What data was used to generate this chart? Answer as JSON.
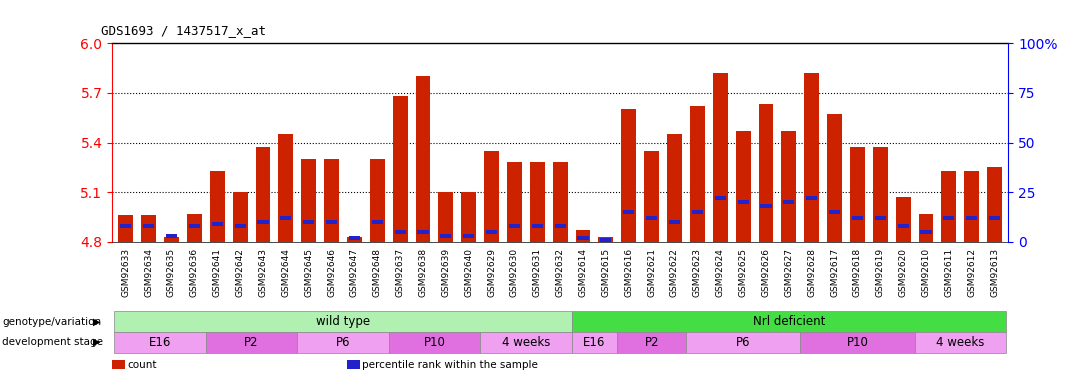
{
  "title": "GDS1693 / 1437517_x_at",
  "samples": [
    "GSM92633",
    "GSM92634",
    "GSM92635",
    "GSM92636",
    "GSM92641",
    "GSM92642",
    "GSM92643",
    "GSM92644",
    "GSM92645",
    "GSM92646",
    "GSM92647",
    "GSM92648",
    "GSM92637",
    "GSM92638",
    "GSM92639",
    "GSM92640",
    "GSM92629",
    "GSM92630",
    "GSM92631",
    "GSM92632",
    "GSM92614",
    "GSM92615",
    "GSM92616",
    "GSM92621",
    "GSM92622",
    "GSM92623",
    "GSM92624",
    "GSM92625",
    "GSM92626",
    "GSM92627",
    "GSM92628",
    "GSM92617",
    "GSM92618",
    "GSM92619",
    "GSM92620",
    "GSM92610",
    "GSM92611",
    "GSM92612",
    "GSM92613"
  ],
  "red_values": [
    4.96,
    4.96,
    4.83,
    4.97,
    5.23,
    5.1,
    5.37,
    5.45,
    5.3,
    5.3,
    4.83,
    5.3,
    5.68,
    5.8,
    5.1,
    5.1,
    5.35,
    5.28,
    5.28,
    5.28,
    4.87,
    4.83,
    5.6,
    5.35,
    5.45,
    5.62,
    5.82,
    5.47,
    5.63,
    5.47,
    5.82,
    5.57,
    5.37,
    5.37,
    5.07,
    4.97,
    5.23,
    5.23,
    5.25
  ],
  "blue_values": [
    8,
    8,
    3,
    8,
    9,
    8,
    10,
    12,
    10,
    10,
    2,
    10,
    5,
    5,
    3,
    3,
    5,
    8,
    8,
    8,
    2,
    1,
    15,
    12,
    10,
    15,
    22,
    20,
    18,
    20,
    22,
    15,
    12,
    12,
    8,
    5,
    12,
    12,
    12
  ],
  "ymin": 4.8,
  "ymax": 6.0,
  "y2min": 0,
  "y2max": 100,
  "yticks_left": [
    4.8,
    5.1,
    5.4,
    5.7,
    6.0
  ],
  "yticks_right": [
    0,
    25,
    50,
    75,
    100
  ],
  "dotted_lines": [
    5.1,
    5.4,
    5.7
  ],
  "genotype_groups": [
    {
      "label": "wild type",
      "start": 0,
      "end": 20,
      "color": "#b0f0b0"
    },
    {
      "label": "Nrl deficient",
      "start": 20,
      "end": 39,
      "color": "#44dd44"
    }
  ],
  "stage_groups": [
    {
      "label": "E16",
      "start": 0,
      "end": 4,
      "color": "#f0a0f0"
    },
    {
      "label": "P2",
      "start": 4,
      "end": 8,
      "color": "#e070e0"
    },
    {
      "label": "P6",
      "start": 8,
      "end": 12,
      "color": "#f0a0f0"
    },
    {
      "label": "P10",
      "start": 12,
      "end": 16,
      "color": "#e070e0"
    },
    {
      "label": "4 weeks",
      "start": 16,
      "end": 20,
      "color": "#f0a0f0"
    },
    {
      "label": "E16",
      "start": 20,
      "end": 22,
      "color": "#f0a0f0"
    },
    {
      "label": "P2",
      "start": 22,
      "end": 25,
      "color": "#e070e0"
    },
    {
      "label": "P6",
      "start": 25,
      "end": 30,
      "color": "#f0a0f0"
    },
    {
      "label": "P10",
      "start": 30,
      "end": 35,
      "color": "#e070e0"
    },
    {
      "label": "4 weeks",
      "start": 35,
      "end": 39,
      "color": "#f0a0f0"
    }
  ],
  "red_color": "#cc2200",
  "blue_color": "#2222cc",
  "bar_width": 0.65,
  "baseline": 4.8,
  "legend_items": [
    {
      "color": "#cc2200",
      "label": "count"
    },
    {
      "color": "#2222cc",
      "label": "percentile rank within the sample"
    }
  ]
}
